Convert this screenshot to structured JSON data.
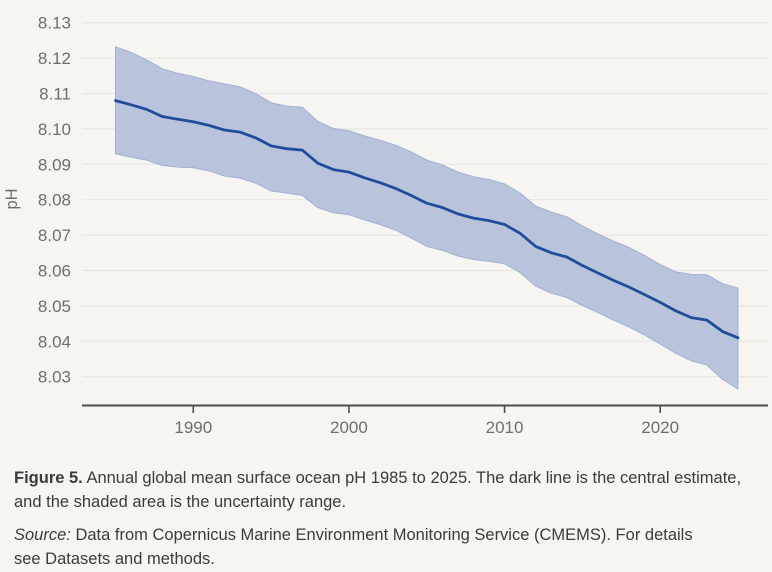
{
  "chart_data": {
    "type": "line",
    "title": "",
    "xlabel": "",
    "ylabel": "pH",
    "xlim": [
      1985,
      2025
    ],
    "ylim": [
      8.02,
      8.135
    ],
    "grid": true,
    "legend": "none",
    "x_ticks": [
      1990,
      2000,
      2010,
      2020
    ],
    "y_ticks": [
      8.03,
      8.04,
      8.05,
      8.06,
      8.07,
      8.08,
      8.09,
      8.1,
      8.11,
      8.12,
      8.13
    ],
    "x": [
      1985,
      1986,
      1987,
      1988,
      1989,
      1990,
      1991,
      1992,
      1993,
      1994,
      1995,
      1996,
      1997,
      1998,
      1999,
      2000,
      2001,
      2002,
      2003,
      2004,
      2005,
      2006,
      2007,
      2008,
      2009,
      2010,
      2011,
      2012,
      2013,
      2014,
      2015,
      2016,
      2017,
      2018,
      2019,
      2020,
      2021,
      2022,
      2023,
      2024,
      2025
    ],
    "series": [
      {
        "name": "Central estimate",
        "values": [
          8.108,
          8.1068,
          8.1055,
          8.1035,
          8.1027,
          8.102,
          8.101,
          8.0997,
          8.0991,
          8.0975,
          8.0952,
          8.0944,
          8.094,
          8.0903,
          8.0885,
          8.0878,
          8.0862,
          8.0848,
          8.0832,
          8.0812,
          8.079,
          8.0778,
          8.076,
          8.0748,
          8.0741,
          8.073,
          8.0705,
          8.0668,
          8.065,
          8.0638,
          8.0614,
          8.0593,
          8.0572,
          8.0553,
          8.0532,
          8.051,
          8.0486,
          8.0467,
          8.046,
          8.0428,
          8.041
        ]
      },
      {
        "name": "Uncertainty range upper",
        "values": [
          8.1232,
          8.1216,
          8.1195,
          8.117,
          8.1157,
          8.1148,
          8.1136,
          8.1127,
          8.1119,
          8.11,
          8.1074,
          8.1064,
          8.1061,
          8.1021,
          8.1001,
          8.0995,
          8.098,
          8.0968,
          8.0954,
          8.0935,
          8.0912,
          8.0898,
          8.0878,
          8.0865,
          8.0857,
          8.0845,
          8.0819,
          8.0782,
          8.0765,
          8.0752,
          8.0726,
          8.0703,
          8.0683,
          8.0665,
          8.0642,
          8.0617,
          8.0596,
          8.0589,
          8.0588,
          8.0563,
          8.055
        ]
      },
      {
        "name": "Uncertainty range lower",
        "values": [
          8.093,
          8.092,
          8.0912,
          8.0897,
          8.0892,
          8.089,
          8.0882,
          8.0867,
          8.0861,
          8.0847,
          8.0825,
          8.0819,
          8.0812,
          8.0778,
          8.0763,
          8.0758,
          8.0743,
          8.073,
          8.0714,
          8.0692,
          8.0668,
          8.0657,
          8.0641,
          8.0631,
          8.0626,
          8.0619,
          8.0594,
          8.0556,
          8.0536,
          8.0524,
          8.0501,
          8.0481,
          8.046,
          8.044,
          8.0418,
          8.0392,
          8.0366,
          8.0345,
          8.0333,
          8.0293,
          8.0265
        ]
      }
    ],
    "colors": {
      "background": "#f7f5f2",
      "grid": "#e8e6e2",
      "axis": "#4d4d4d",
      "tick_text": "#6e6e6e",
      "band": "#b9c4dc",
      "band_border": "#9fb0d2",
      "line": "#1e4e9b",
      "text_dark": "#3b3b3b"
    }
  },
  "caption": {
    "figure_label": "Figure 5.",
    "text": "Annual global mean surface ocean pH 1985 to 2025. The dark line is the central estimate, and the shaded area is the uncertainty range.",
    "source_label": "Source:",
    "source_text": "Data from Copernicus Marine Environment Monitoring Service (CMEMS). For details see Datasets and methods."
  }
}
